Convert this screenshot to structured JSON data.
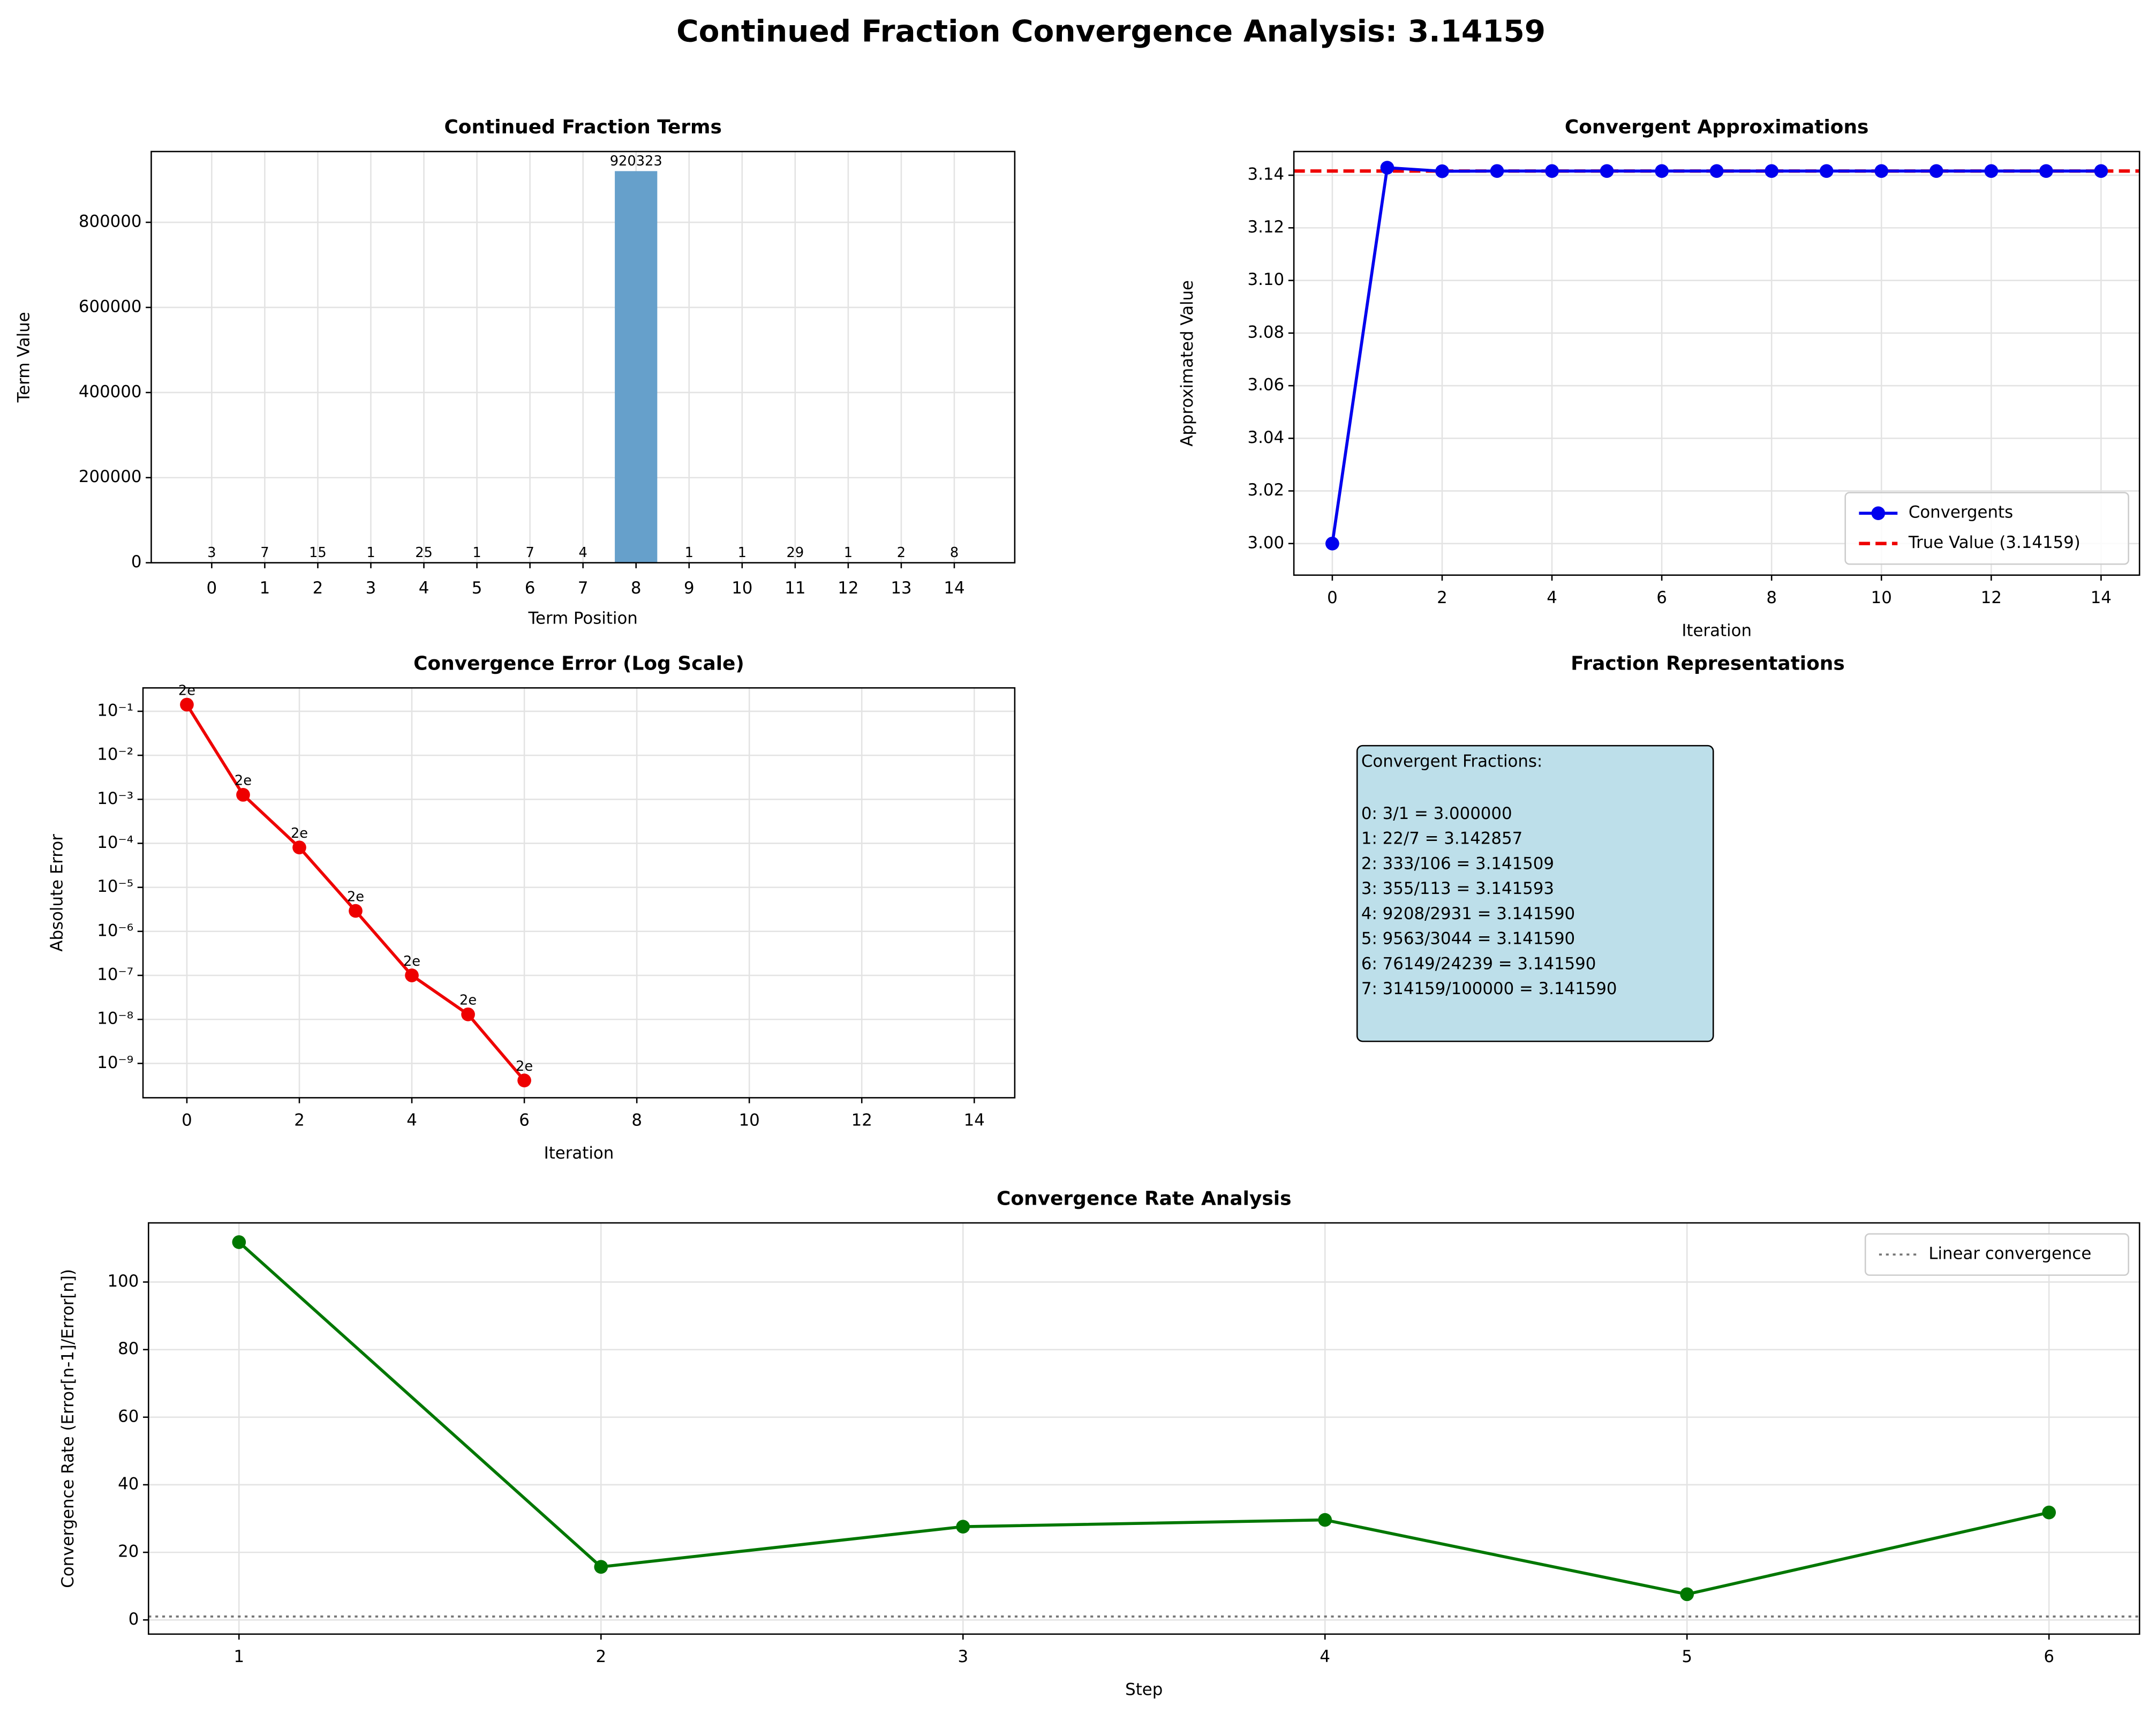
{
  "title": "Continued Fraction Convergence Analysis: 3.14159",
  "chart_data": [
    {
      "type": "bar",
      "title": "Continued Fraction Terms",
      "x_label": "Term Position",
      "y_label": "Term Value",
      "categories": [
        "0",
        "1",
        "2",
        "3",
        "4",
        "5",
        "6",
        "7",
        "8",
        "9",
        "10",
        "11",
        "12",
        "13",
        "14"
      ],
      "values": [
        3,
        7,
        15,
        1,
        25,
        1,
        7,
        4,
        920323,
        1,
        1,
        29,
        1,
        2,
        8
      ],
      "color": "#66a0cb",
      "ylim": [
        0,
        966339
      ],
      "yticks": [
        0,
        200000,
        400000,
        600000,
        800000
      ],
      "grid": true
    },
    {
      "type": "line",
      "title": "Convergent Approximations",
      "x_label": "Iteration",
      "y_label": "Approximated Value",
      "x": [
        0,
        1,
        2,
        3,
        4,
        5,
        6,
        7,
        8,
        9,
        10,
        11,
        12,
        13,
        14
      ],
      "series": [
        {
          "name": "Convergents",
          "color": "#0000ee",
          "values": [
            3.0,
            3.142857,
            3.141509,
            3.141593,
            3.14159,
            3.14159,
            3.14159,
            3.14159,
            3.14159,
            3.14159,
            3.14159,
            3.14159,
            3.14159,
            3.14159,
            3.14159
          ]
        }
      ],
      "hlines": [
        {
          "name": "True Value (3.14159)",
          "value": 3.14159,
          "color": "#ee0000",
          "style": "dashed"
        }
      ],
      "xlim": [
        -0.7,
        14.7
      ],
      "xticks": [
        0,
        2,
        4,
        6,
        8,
        10,
        12,
        14
      ],
      "ylim": [
        2.988,
        3.149
      ],
      "yticks": [
        {
          "value": 3.0,
          "label": "3.00"
        },
        {
          "value": 3.02,
          "label": "3.02"
        },
        {
          "value": 3.04,
          "label": "3.04"
        },
        {
          "value": 3.06,
          "label": "3.06"
        },
        {
          "value": 3.08,
          "label": "3.08"
        },
        {
          "value": 3.1,
          "label": "3.10"
        },
        {
          "value": 3.12,
          "label": "3.12"
        },
        {
          "value": 3.14,
          "label": "3.14"
        }
      ],
      "grid": true,
      "legend": "lower right"
    },
    {
      "type": "line",
      "title": "Convergence Error (Log Scale)",
      "x_label": "Iteration",
      "y_label": "Absolute Error",
      "log_y": true,
      "x": [
        0,
        1,
        2,
        3,
        4,
        5,
        6,
        7,
        8,
        9,
        10,
        11,
        12,
        13,
        14
      ],
      "series": [
        {
          "color": "#ee0000",
          "values": [
            0.14159,
            0.001267,
            8.06e-05,
            2.92e-06,
            1e-07,
            1.3e-08,
            4.1e-10,
            null,
            null,
            null,
            null,
            null,
            null,
            null,
            null
          ]
        }
      ],
      "annotations": [
        "2e",
        "2e",
        "2e",
        "2e",
        "2e",
        "2e",
        "2e"
      ],
      "xlim": [
        -0.78,
        14.72
      ],
      "xticks": [
        0,
        2,
        4,
        6,
        8,
        10,
        12,
        14
      ],
      "ylim": [
        1.66e-10,
        0.34
      ],
      "yticks": [
        {
          "value": 0.1,
          "label": "10⁻¹"
        },
        {
          "value": 0.01,
          "label": "10⁻²"
        },
        {
          "value": 0.001,
          "label": "10⁻³"
        },
        {
          "value": 0.0001,
          "label": "10⁻⁴"
        },
        {
          "value": 1e-05,
          "label": "10⁻⁵"
        },
        {
          "value": 1e-06,
          "label": "10⁻⁶"
        },
        {
          "value": 1e-07,
          "label": "10⁻⁷"
        },
        {
          "value": 1e-08,
          "label": "10⁻⁸"
        },
        {
          "value": 1e-09,
          "label": "10⁻⁹"
        }
      ],
      "grid": true
    },
    {
      "type": "text",
      "title": "Fraction Representations",
      "heading": "Convergent Fractions:",
      "lines": [
        "0: 3/1 = 3.000000",
        "1: 22/7 = 3.142857",
        "2: 333/106 = 3.141509",
        "3: 355/113 = 3.141593",
        "4: 9208/2931 = 3.141590",
        "5: 9563/3044 = 3.141590",
        "6: 76149/24239 = 3.141590",
        "7: 314159/100000 = 3.141590"
      ],
      "color": "#bddfea"
    },
    {
      "type": "line",
      "title": "Convergence Rate Analysis",
      "x_label": "Step",
      "y_label": "Convergence Rate (Error[n-1]/Error[n])",
      "x": [
        1,
        2,
        3,
        4,
        5,
        6
      ],
      "series": [
        {
          "color": "#007700",
          "values": [
            111.8,
            15.7,
            27.6,
            29.6,
            7.6,
            31.8
          ]
        }
      ],
      "hlines": [
        {
          "name": "Linear convergence",
          "value": 1,
          "color": "#777777",
          "style": "dotted"
        }
      ],
      "xlim": [
        0.75,
        6.25
      ],
      "xticks": [
        1,
        2,
        3,
        4,
        5,
        6
      ],
      "ylim": [
        -4.2,
        117.5
      ],
      "yticks": [
        0,
        20,
        40,
        60,
        80,
        100
      ],
      "grid": true,
      "legend": "upper right"
    }
  ]
}
